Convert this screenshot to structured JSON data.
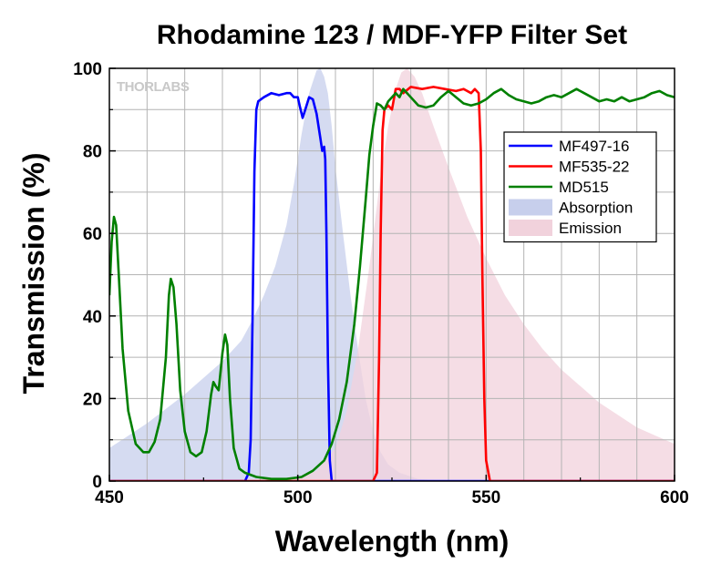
{
  "chart_data": {
    "type": "line",
    "title": "Rhodamine 123 / MDF-YFP Filter Set",
    "xlabel": "Wavelength (nm)",
    "ylabel": "Transmission (%)",
    "xlim": [
      450,
      600
    ],
    "ylim": [
      0,
      100
    ],
    "xticks": [
      450,
      500,
      550,
      600
    ],
    "yticks": [
      0,
      20,
      40,
      60,
      80,
      100
    ],
    "grid": true,
    "legend_position": "right",
    "brand": "THORLABS",
    "series": [
      {
        "name": "MF497-16",
        "kind": "line",
        "color": "#0000ff",
        "points": [
          [
            450,
            0
          ],
          [
            486,
            0
          ],
          [
            487,
            2
          ],
          [
            487.5,
            10
          ],
          [
            488,
            40
          ],
          [
            488.5,
            75
          ],
          [
            489,
            90
          ],
          [
            489.5,
            92
          ],
          [
            491,
            93
          ],
          [
            493,
            94
          ],
          [
            495,
            93.5
          ],
          [
            497,
            94
          ],
          [
            498,
            94
          ],
          [
            499,
            93
          ],
          [
            500,
            93
          ],
          [
            500.5,
            91
          ],
          [
            501.3,
            88
          ],
          [
            502,
            90
          ],
          [
            503,
            93
          ],
          [
            504,
            92.5
          ],
          [
            505,
            89
          ],
          [
            506,
            83
          ],
          [
            506.5,
            80
          ],
          [
            507,
            81
          ],
          [
            507.3,
            78
          ],
          [
            507.6,
            60
          ],
          [
            508,
            30
          ],
          [
            508.5,
            5
          ],
          [
            509,
            0
          ],
          [
            600,
            0
          ]
        ]
      },
      {
        "name": "MF535-22",
        "kind": "line",
        "color": "#ff0000",
        "points": [
          [
            450,
            0
          ],
          [
            520,
            0
          ],
          [
            521,
            2
          ],
          [
            521.6,
            30
          ],
          [
            522,
            60
          ],
          [
            522.5,
            85
          ],
          [
            523,
            90
          ],
          [
            524,
            91
          ],
          [
            525,
            90
          ],
          [
            526,
            95
          ],
          [
            527,
            95
          ],
          [
            528,
            94
          ],
          [
            530,
            95.5
          ],
          [
            533,
            95
          ],
          [
            536,
            95.5
          ],
          [
            539,
            95
          ],
          [
            542,
            94.5
          ],
          [
            544,
            95
          ],
          [
            546,
            94
          ],
          [
            547,
            95
          ],
          [
            548,
            94
          ],
          [
            548.6,
            80
          ],
          [
            549,
            50
          ],
          [
            549.5,
            20
          ],
          [
            550,
            5
          ],
          [
            551,
            0
          ],
          [
            600,
            0
          ]
        ]
      },
      {
        "name": "MD515",
        "kind": "line",
        "color": "#008000",
        "points": [
          [
            450,
            45
          ],
          [
            450.6,
            58
          ],
          [
            451.2,
            64
          ],
          [
            451.8,
            62
          ],
          [
            452.5,
            50
          ],
          [
            453.5,
            32
          ],
          [
            455,
            17
          ],
          [
            457,
            9
          ],
          [
            459,
            7
          ],
          [
            460.5,
            7
          ],
          [
            462,
            9.5
          ],
          [
            463.5,
            15
          ],
          [
            465,
            30
          ],
          [
            465.8,
            45
          ],
          [
            466.3,
            49
          ],
          [
            467,
            47
          ],
          [
            467.8,
            38
          ],
          [
            468.8,
            22
          ],
          [
            470,
            12
          ],
          [
            471.5,
            7
          ],
          [
            473,
            6
          ],
          [
            474.5,
            7
          ],
          [
            475.8,
            12
          ],
          [
            477,
            21
          ],
          [
            477.6,
            24
          ],
          [
            478.2,
            23
          ],
          [
            479,
            22
          ],
          [
            480,
            31
          ],
          [
            480.7,
            35.5
          ],
          [
            481.3,
            33
          ],
          [
            482,
            20
          ],
          [
            483,
            8
          ],
          [
            484.5,
            3
          ],
          [
            486,
            2
          ],
          [
            489,
            1
          ],
          [
            493,
            0.5
          ],
          [
            497,
            0.5
          ],
          [
            501,
            1
          ],
          [
            504,
            2.5
          ],
          [
            507,
            5
          ],
          [
            509,
            9
          ],
          [
            511,
            15
          ],
          [
            513,
            24
          ],
          [
            515,
            38
          ],
          [
            516.5,
            52
          ],
          [
            518,
            68
          ],
          [
            519,
            79
          ],
          [
            520,
            86
          ],
          [
            521,
            91.5
          ],
          [
            522,
            91
          ],
          [
            523,
            90
          ],
          [
            524,
            92
          ],
          [
            526,
            94
          ],
          [
            527,
            93
          ],
          [
            528,
            95
          ],
          [
            530,
            93
          ],
          [
            532,
            91
          ],
          [
            534,
            90.5
          ],
          [
            536,
            91
          ],
          [
            538,
            93
          ],
          [
            540,
            94.5
          ],
          [
            542,
            93
          ],
          [
            544,
            91.5
          ],
          [
            546,
            91
          ],
          [
            548,
            91.5
          ],
          [
            550,
            92.5
          ],
          [
            552,
            94
          ],
          [
            554,
            95
          ],
          [
            556,
            93.5
          ],
          [
            558,
            92.5
          ],
          [
            560,
            92
          ],
          [
            562,
            91.5
          ],
          [
            564,
            92
          ],
          [
            566,
            93
          ],
          [
            568,
            93.5
          ],
          [
            570,
            93
          ],
          [
            572,
            94
          ],
          [
            574,
            95
          ],
          [
            576,
            94
          ],
          [
            578,
            93
          ],
          [
            580,
            92
          ],
          [
            582,
            92.5
          ],
          [
            584,
            92
          ],
          [
            586,
            93
          ],
          [
            588,
            92
          ],
          [
            590,
            92.5
          ],
          [
            592,
            93
          ],
          [
            594,
            94
          ],
          [
            596,
            94.5
          ],
          [
            598,
            93.5
          ],
          [
            600,
            93
          ]
        ]
      },
      {
        "name": "Absorption",
        "kind": "area",
        "color": "#c7cfec",
        "points": [
          [
            450,
            8
          ],
          [
            455,
            11
          ],
          [
            460,
            14
          ],
          [
            465,
            17.5
          ],
          [
            470,
            21
          ],
          [
            475,
            25
          ],
          [
            480,
            29
          ],
          [
            485,
            34
          ],
          [
            488,
            39
          ],
          [
            491,
            45
          ],
          [
            494,
            52
          ],
          [
            497,
            62
          ],
          [
            499,
            72
          ],
          [
            501,
            84
          ],
          [
            503,
            94
          ],
          [
            505,
            99.5
          ],
          [
            506,
            100
          ],
          [
            507,
            98
          ],
          [
            508,
            94
          ],
          [
            509,
            86
          ],
          [
            510,
            76
          ],
          [
            512,
            60
          ],
          [
            514,
            45
          ],
          [
            516,
            32
          ],
          [
            518,
            20
          ],
          [
            520,
            12
          ],
          [
            522,
            7
          ],
          [
            524,
            4
          ],
          [
            527,
            2
          ],
          [
            532,
            0.5
          ],
          [
            540,
            0
          ]
        ]
      },
      {
        "name": "Emission",
        "kind": "area",
        "color": "#f1d2dc",
        "points": [
          [
            495,
            0
          ],
          [
            500,
            1
          ],
          [
            505,
            2.5
          ],
          [
            510,
            8
          ],
          [
            513,
            17
          ],
          [
            516,
            32
          ],
          [
            519,
            52
          ],
          [
            522,
            74
          ],
          [
            524,
            86
          ],
          [
            526,
            95
          ],
          [
            527.5,
            99
          ],
          [
            529,
            100
          ],
          [
            531,
            98
          ],
          [
            533,
            94
          ],
          [
            536,
            86
          ],
          [
            540,
            76
          ],
          [
            545,
            64
          ],
          [
            550,
            54
          ],
          [
            555,
            45
          ],
          [
            560,
            38
          ],
          [
            565,
            32
          ],
          [
            570,
            27
          ],
          [
            575,
            23
          ],
          [
            580,
            19
          ],
          [
            585,
            16
          ],
          [
            590,
            13
          ],
          [
            595,
            11
          ],
          [
            600,
            9
          ]
        ]
      }
    ]
  }
}
